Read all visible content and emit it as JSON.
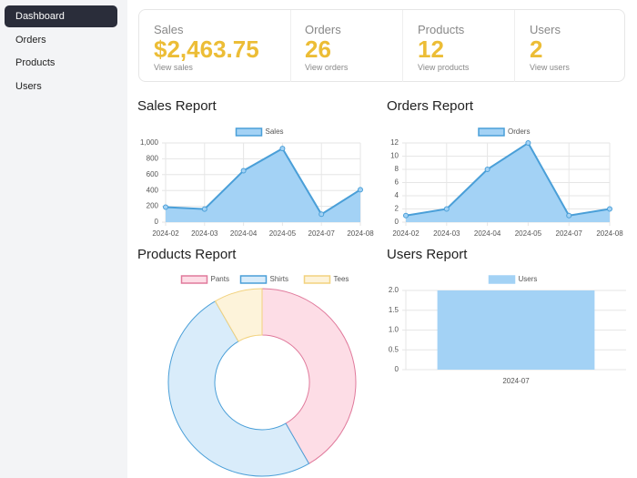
{
  "sidebar": {
    "items": [
      "Dashboard",
      "Orders",
      "Products",
      "Users"
    ]
  },
  "stats": [
    {
      "label": "Sales",
      "value": "$2,463.75",
      "link": "View sales"
    },
    {
      "label": "Orders",
      "value": "26",
      "link": "View orders"
    },
    {
      "label": "Products",
      "value": "12",
      "link": "View products"
    },
    {
      "label": "Users",
      "value": "2",
      "link": "View users"
    }
  ],
  "chart_data": [
    {
      "type": "line",
      "title": "Sales Report",
      "categories": [
        "2024-02",
        "2024-03",
        "2024-04",
        "2024-05",
        "2024-07",
        "2024-08"
      ],
      "series": [
        {
          "name": "Sales",
          "color": "#4a9fd8",
          "fill_color": "#a3d2f5",
          "values": [
            190,
            165,
            650,
            930,
            100,
            410
          ]
        }
      ],
      "ylim": [
        0,
        1000
      ],
      "yticks": [
        0,
        200,
        400,
        600,
        800,
        {
          "value": 1000,
          "label": "1,000"
        }
      ],
      "grid": true,
      "legend": "top"
    },
    {
      "type": "line",
      "title": "Orders Report",
      "categories": [
        "2024-02",
        "2024-03",
        "2024-04",
        "2024-05",
        "2024-07",
        "2024-08"
      ],
      "series": [
        {
          "name": "Orders",
          "color": "#4a9fd8",
          "fill_color": "#a3d2f5",
          "values": [
            1,
            2,
            8,
            12,
            1,
            2
          ]
        }
      ],
      "ylim": [
        0,
        12
      ],
      "yticks": [
        0,
        2,
        4,
        6,
        8,
        10,
        12
      ],
      "grid": true,
      "legend": "top"
    },
    {
      "type": "doughnut",
      "title": "Products Report",
      "categories": [
        "Pants",
        "Shirts",
        "Tees"
      ],
      "values": [
        5,
        6,
        1
      ],
      "colors": [
        "#fddde6",
        "#d9ecfa",
        "#fdf3da"
      ],
      "border_colors": [
        "#e07a9c",
        "#4a9fd8",
        "#f2d27e"
      ],
      "legend": "top"
    },
    {
      "type": "bar",
      "title": "Users Report",
      "categories": [
        "2024-07"
      ],
      "series": [
        {
          "name": "Users",
          "color": "#a3d2f5",
          "values": [
            2
          ]
        }
      ],
      "ylim": [
        0,
        2
      ],
      "yticks": [
        0,
        0.5,
        {
          "value": 1,
          "label": "1.0"
        },
        1.5,
        {
          "value": 2,
          "label": "2.0"
        }
      ],
      "grid": true,
      "legend": "top"
    }
  ]
}
